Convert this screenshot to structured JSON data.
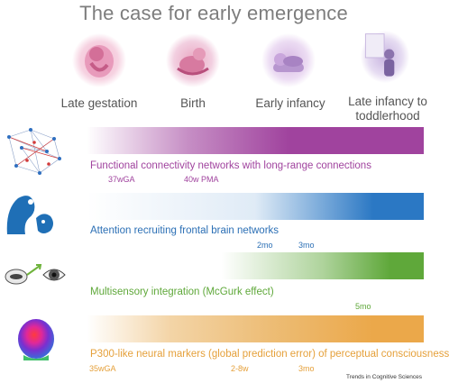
{
  "title": "The case for early emergence",
  "stages": [
    {
      "label": "Late gestation",
      "icon": "fetus-illustration"
    },
    {
      "label": "Birth",
      "icon": "newborn-illustration"
    },
    {
      "label": "Early infancy",
      "icon": "sleeping-infant-illustration"
    },
    {
      "label": "Late infancy to toddlerhood",
      "icon": "toddler-at-window-illustration"
    }
  ],
  "rows": [
    {
      "label": "Functional connectivity networks with long-range connections",
      "color": "#a0439e",
      "icon": "network-graph-icon",
      "markers": [
        "37wGA",
        "40w PMA"
      ]
    },
    {
      "label": "Attention recruiting frontal brain networks",
      "color": "#2b78c4",
      "icon": "mother-infant-gaze-icon",
      "markers": [
        "2mo",
        "3mo"
      ]
    },
    {
      "label": "Multisensory integration (McGurk effect)",
      "color": "#5fa83a",
      "icon": "mouth-eye-icon",
      "markers": [
        "5mo"
      ]
    },
    {
      "label": "P300-like neural markers (global prediction error) of perceptual consciousness",
      "color": "#e5a03a",
      "icon": "eeg-scalp-map-icon",
      "markers": [
        "35wGA",
        "2-8w",
        "3mo"
      ]
    }
  ],
  "credit": "Trends in Cognitive Sciences"
}
